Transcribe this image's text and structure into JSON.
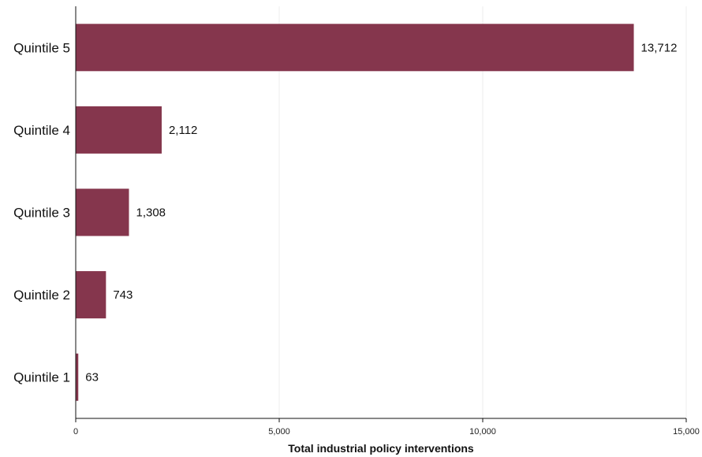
{
  "chart_data": {
    "type": "bar",
    "orientation": "horizontal",
    "categories": [
      "Quintile 5",
      "Quintile 4",
      "Quintile 3",
      "Quintile 2",
      "Quintile 1"
    ],
    "values": [
      13712,
      2112,
      1308,
      743,
      63
    ],
    "value_labels": [
      "13,712",
      "2,112",
      "1,308",
      "743",
      "63"
    ],
    "xlabel": "Total industrial policy interventions",
    "ylabel": "",
    "xlim": [
      0,
      15000
    ],
    "x_ticks": [
      0,
      5000,
      10000,
      15000
    ],
    "x_tick_labels": [
      "0",
      "5,000",
      "10,000",
      "15,000"
    ],
    "grid": "vertical",
    "bar_color": "#85364d",
    "legend": "none"
  }
}
